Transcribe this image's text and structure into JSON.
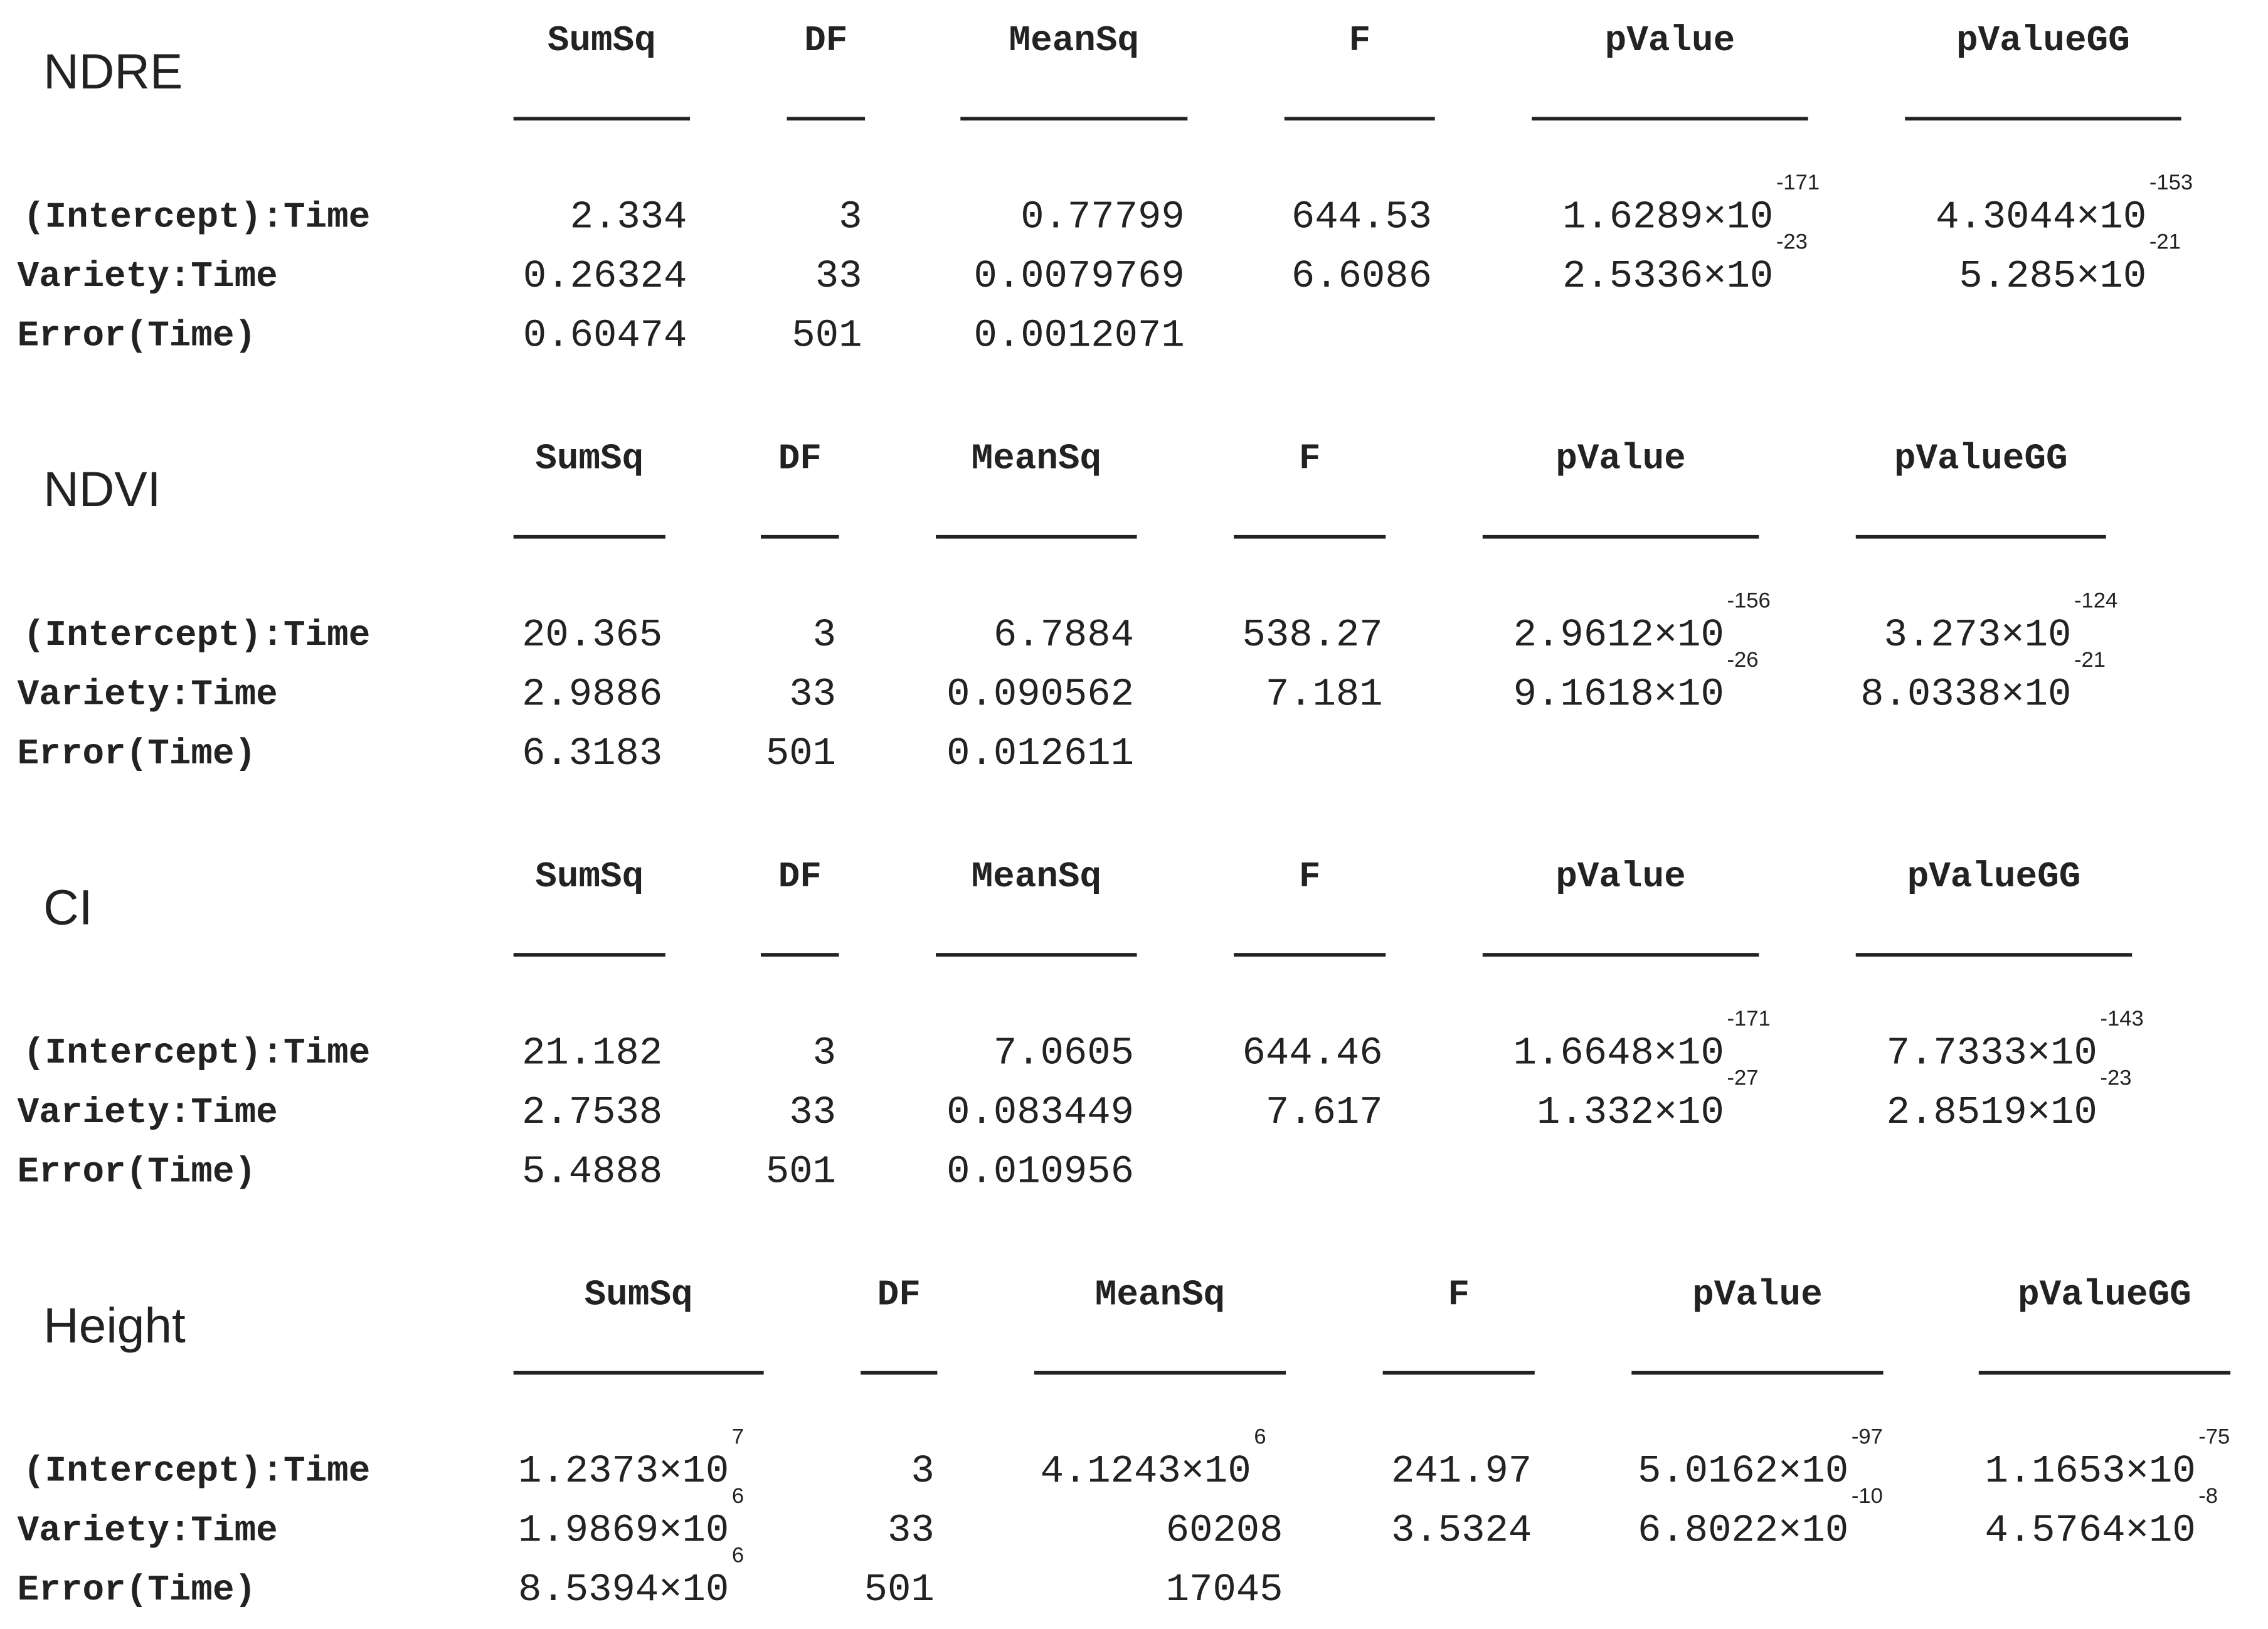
{
  "tables": [
    {
      "title": "NDRE",
      "columns": [
        "SumSq",
        "DF",
        "MeanSq",
        "F",
        "pValue",
        "pValueGG"
      ],
      "rows": [
        {
          "label": "(Intercept):Time",
          "cells": [
            "2.334",
            "3",
            "0.77799",
            "644.53",
            {
              "base": "1.6289×10",
              "exp": "-171"
            },
            {
              "base": "4.3044×10",
              "exp": "-153"
            }
          ]
        },
        {
          "label": "Variety:Time",
          "cells": [
            "0.26324",
            "33",
            "0.0079769",
            "6.6086",
            {
              "base": "2.5336×10",
              "exp": "-23"
            },
            {
              "base": "5.285×10",
              "exp": "-21"
            }
          ]
        },
        {
          "label": "Error(Time)",
          "cells": [
            "0.60474",
            "501",
            "0.0012071"
          ]
        }
      ]
    },
    {
      "title": "NDVI",
      "columns": [
        "SumSq",
        "DF",
        "MeanSq",
        "F",
        "pValue",
        "pValueGG"
      ],
      "rows": [
        {
          "label": "(Intercept):Time",
          "cells": [
            "20.365",
            "3",
            "6.7884",
            "538.27",
            {
              "base": "2.9612×10",
              "exp": "-156"
            },
            {
              "base": "3.273×10",
              "exp": "-124"
            }
          ]
        },
        {
          "label": "Variety:Time",
          "cells": [
            "2.9886",
            "33",
            "0.090562",
            "7.181",
            {
              "base": "9.1618×10",
              "exp": "-26"
            },
            {
              "base": "8.0338×10",
              "exp": "-21"
            }
          ]
        },
        {
          "label": "Error(Time)",
          "cells": [
            "6.3183",
            "501",
            "0.012611"
          ]
        }
      ]
    },
    {
      "title": "CI",
      "columns": [
        "SumSq",
        "DF",
        "MeanSq",
        "F",
        "pValue",
        "pValueGG"
      ],
      "rows": [
        {
          "label": "(Intercept):Time",
          "cells": [
            "21.182",
            "3",
            "7.0605",
            "644.46",
            {
              "base": "1.6648×10",
              "exp": "-171"
            },
            {
              "base": "7.7333×10",
              "exp": "-143"
            }
          ]
        },
        {
          "label": "Variety:Time",
          "cells": [
            "2.7538",
            "33",
            "0.083449",
            "7.617",
            {
              "base": "1.332×10",
              "exp": "-27"
            },
            {
              "base": "2.8519×10",
              "exp": "-23"
            }
          ]
        },
        {
          "label": "Error(Time)",
          "cells": [
            "5.4888",
            "501",
            "0.010956"
          ]
        }
      ]
    },
    {
      "title": "Height",
      "columns": [
        "SumSq",
        "DF",
        "MeanSq",
        "F",
        "pValue",
        "pValueGG"
      ],
      "rows": [
        {
          "label": "(Intercept):Time",
          "cells": [
            {
              "base": "1.2373×10",
              "exp": "7"
            },
            "3",
            {
              "base": "4.1243×10",
              "exp": "6"
            },
            "241.97",
            {
              "base": "5.0162×10",
              "exp": "-97"
            },
            {
              "base": "1.1653×10",
              "exp": "-75"
            }
          ]
        },
        {
          "label": "Variety:Time",
          "cells": [
            {
              "base": "1.9869×10",
              "exp": "6"
            },
            "33",
            "60208",
            "3.5324",
            {
              "base": "6.8022×10",
              "exp": "-10"
            },
            {
              "base": "4.5764×10",
              "exp": "-8"
            }
          ]
        },
        {
          "label": "Error(Time)",
          "cells": [
            {
              "base": "8.5394×10",
              "exp": "6"
            },
            "501",
            "17045"
          ]
        }
      ]
    }
  ]
}
